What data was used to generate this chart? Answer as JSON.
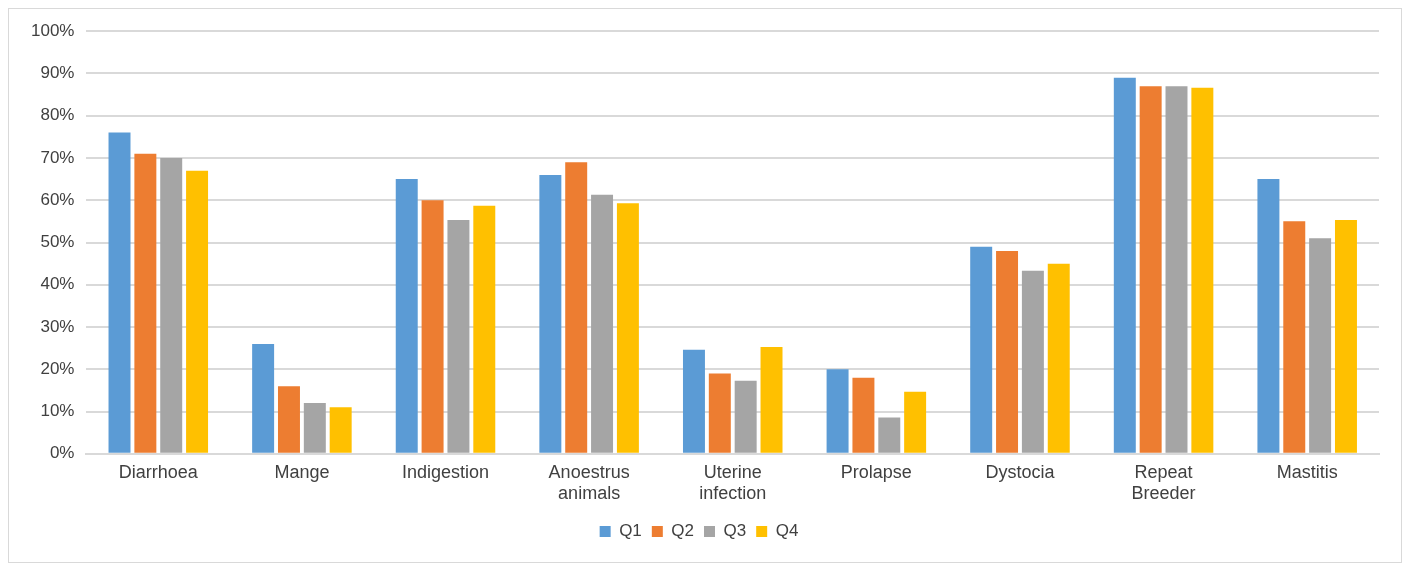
{
  "chart_data": {
    "type": "bar",
    "categories": [
      "Diarrhoea",
      "Mange",
      "Indigestion",
      "Anoestrus animals",
      "Uterine infection",
      "Prolapse",
      "Dystocia",
      "Repeat Breeder",
      "Mastitis"
    ],
    "series": [
      {
        "name": "Q1",
        "color": "#5b9bd5",
        "values": [
          76,
          26,
          65,
          66,
          24.6,
          20,
          49,
          89,
          65
        ]
      },
      {
        "name": "Q2",
        "color": "#ed7d31",
        "values": [
          71,
          16,
          60,
          69,
          19,
          18,
          48,
          87,
          55
        ]
      },
      {
        "name": "Q3",
        "color": "#a5a5a5",
        "values": [
          70,
          12,
          55.3,
          61.3,
          17.3,
          8.6,
          43.3,
          87,
          51
        ]
      },
      {
        "name": "Q4",
        "color": "#ffc000",
        "values": [
          67,
          11,
          58.7,
          59.3,
          25.3,
          14.7,
          45,
          86.6,
          55.3
        ]
      }
    ],
    "ylim": [
      0,
      100
    ],
    "yticks": [
      {
        "value": 0,
        "label": "0%"
      },
      {
        "value": 10,
        "label": "10%"
      },
      {
        "value": 20,
        "label": "20%"
      },
      {
        "value": 30,
        "label": "30%"
      },
      {
        "value": 40,
        "label": "40%"
      },
      {
        "value": 50,
        "label": "50%"
      },
      {
        "value": 60,
        "label": "60%"
      },
      {
        "value": 70,
        "label": "70%"
      },
      {
        "value": 80,
        "label": "80%"
      },
      {
        "value": 90,
        "label": "90%"
      },
      {
        "value": 100,
        "label": "100%"
      }
    ],
    "grid": "y",
    "legend": "bottom"
  }
}
